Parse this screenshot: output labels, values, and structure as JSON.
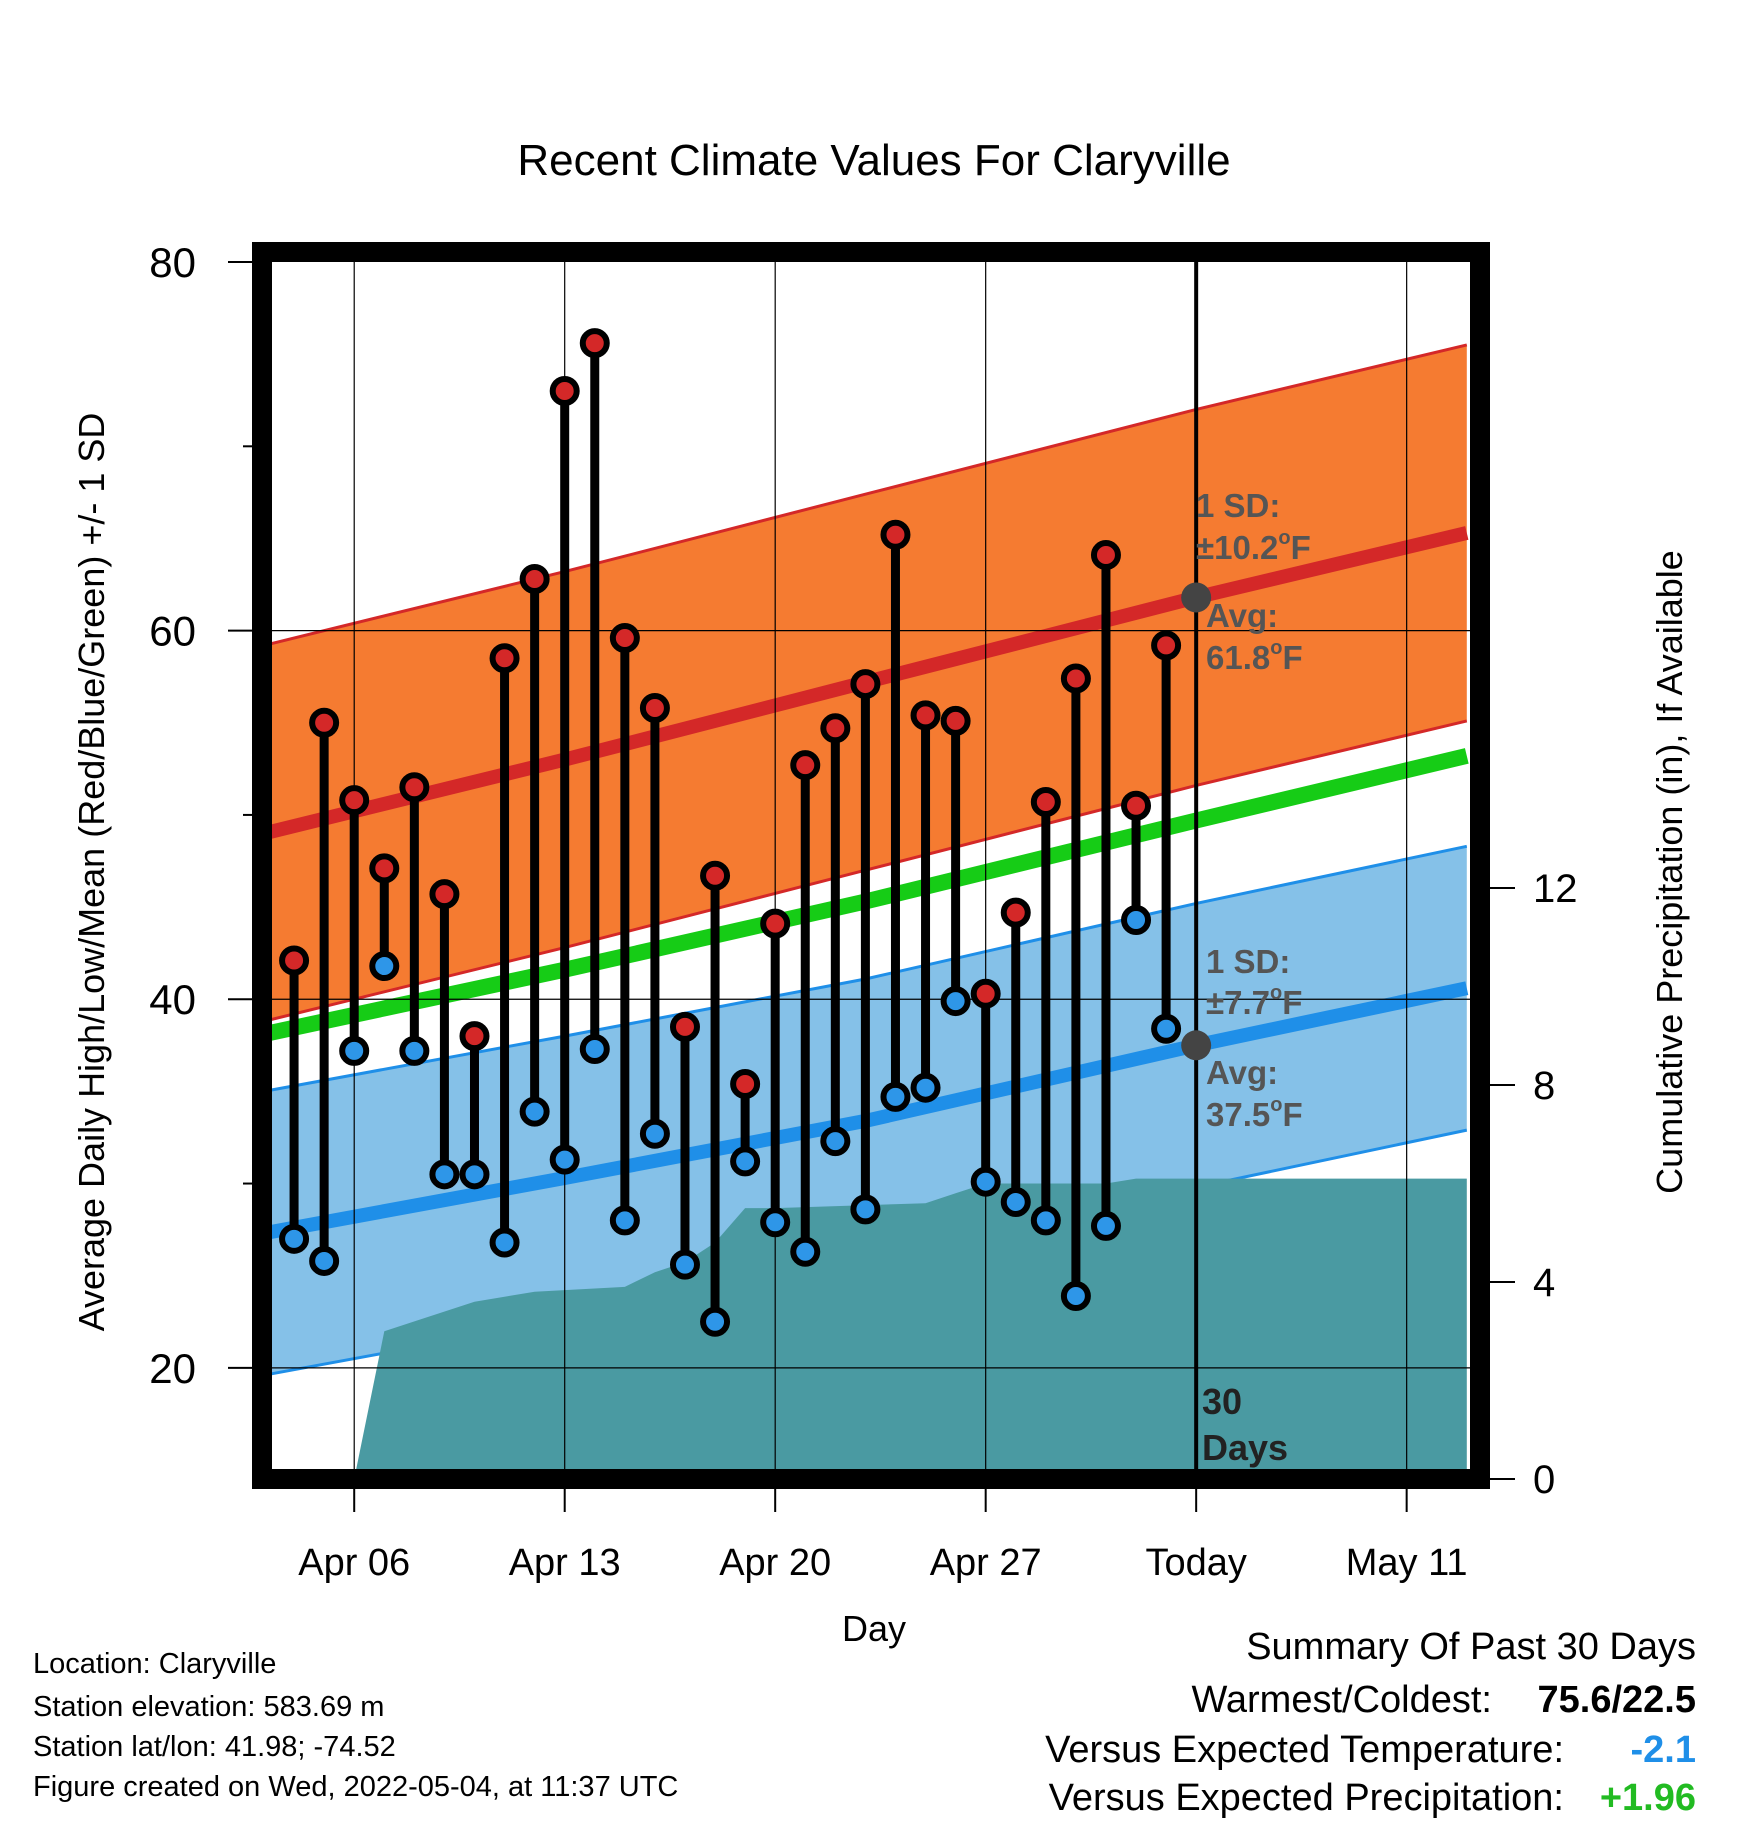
{
  "colors": {
    "high_band": "#f57b31",
    "high_line": "#d42828",
    "low_band": "#85c1e8",
    "low_line": "#1f8fe8",
    "mean_line": "#16cc16",
    "precip_fill": "#4a9aa2",
    "high_dot": "#d42828",
    "low_dot": "#2e96e8",
    "today_dot": "#444444",
    "temp_anomaly": "#1f8fe8",
    "precip_anomaly": "#22bb22"
  },
  "chart_data": {
    "type": "line",
    "title": "Recent Climate Values For Claryville",
    "xlabel": "Day",
    "ylabel": "Average Daily High/Low/Mean (Red/Blue/Green) +/- 1 SD",
    "y2label": "Cumulative Precipitation (in), If Available",
    "x_ticks": [
      "Apr 06",
      "Apr 13",
      "Apr 20",
      "Apr 27",
      "Today",
      "May 11"
    ],
    "y_ticks": [
      "20",
      "40",
      "60",
      "80"
    ],
    "y2_ticks": [
      "0",
      "4",
      "8",
      "12"
    ],
    "x_domain": [
      "2022-04-03",
      "2022-05-13"
    ],
    "ylim": [
      15,
      80
    ],
    "y2lim": [
      0,
      20
    ],
    "today": "2022-05-04",
    "grid": true,
    "normal_high": {
      "dates": [
        "2022-04-03",
        "2022-04-13",
        "2022-04-23",
        "2022-05-04",
        "2022-05-13"
      ],
      "avg": [
        49.0,
        53.0,
        57.2,
        61.8,
        65.3
      ],
      "sd": 10.2
    },
    "normal_low": {
      "dates": [
        "2022-04-03",
        "2022-04-13",
        "2022-04-23",
        "2022-05-04",
        "2022-05-13"
      ],
      "avg": [
        27.3,
        30.3,
        33.4,
        37.5,
        40.6
      ],
      "sd": 7.7
    },
    "normal_mean": {
      "dates": [
        "2022-04-03",
        "2022-04-13",
        "2022-04-23",
        "2022-05-04",
        "2022-05-13"
      ],
      "values": [
        38.1,
        41.6,
        45.3,
        49.7,
        53.2
      ]
    },
    "observed": {
      "dates": [
        "2022-04-04",
        "2022-04-05",
        "2022-04-06",
        "2022-04-07",
        "2022-04-08",
        "2022-04-09",
        "2022-04-10",
        "2022-04-11",
        "2022-04-12",
        "2022-04-13",
        "2022-04-14",
        "2022-04-15",
        "2022-04-16",
        "2022-04-17",
        "2022-04-18",
        "2022-04-19",
        "2022-04-20",
        "2022-04-21",
        "2022-04-22",
        "2022-04-23",
        "2022-04-24",
        "2022-04-25",
        "2022-04-26",
        "2022-04-27",
        "2022-04-28",
        "2022-04-29",
        "2022-04-30",
        "2022-05-01",
        "2022-05-02",
        "2022-05-03"
      ],
      "high": [
        42.1,
        55.0,
        50.8,
        47.1,
        51.5,
        45.7,
        38.0,
        58.5,
        62.8,
        73.0,
        75.6,
        59.6,
        55.8,
        38.5,
        46.7,
        35.4,
        44.1,
        52.7,
        54.7,
        57.1,
        65.2,
        55.4,
        55.1,
        40.3,
        44.7,
        50.7,
        57.4,
        64.1,
        50.5,
        59.2
      ],
      "low": [
        27.0,
        25.8,
        37.2,
        41.8,
        37.2,
        30.5,
        30.5,
        26.8,
        33.9,
        31.3,
        37.3,
        28.0,
        32.7,
        25.6,
        22.5,
        31.2,
        27.9,
        26.3,
        32.3,
        28.6,
        34.7,
        35.2,
        39.9,
        30.1,
        29.0,
        28.0,
        23.9,
        27.7,
        44.3,
        38.4
      ]
    },
    "precip": {
      "dates": [
        "2022-04-05",
        "2022-04-06",
        "2022-04-07",
        "2022-04-08",
        "2022-04-10",
        "2022-04-12",
        "2022-04-15",
        "2022-04-16",
        "2022-04-17",
        "2022-04-18",
        "2022-04-19",
        "2022-04-20",
        "2022-04-25",
        "2022-04-26",
        "2022-04-27",
        "2022-04-30",
        "2022-05-01",
        "2022-05-02",
        "2022-05-13"
      ],
      "cumulative": [
        0.0,
        0.0,
        3.0,
        3.2,
        3.6,
        3.8,
        3.9,
        4.2,
        4.4,
        4.8,
        5.5,
        5.5,
        5.6,
        5.8,
        6.0,
        6.0,
        6.0,
        6.1,
        6.1
      ]
    }
  },
  "annotations": {
    "high_sd_label": "1 SD:",
    "high_sd_value": "±10.2",
    "high_sd_unit": "F",
    "high_avg_label": "Avg:",
    "high_avg_value": "61.8",
    "high_avg_unit": "F",
    "low_sd_label": "1 SD:",
    "low_sd_value": "±7.7",
    "low_sd_unit": "F",
    "low_avg_label": "Avg:",
    "low_avg_value": "37.5",
    "low_avg_unit": "F",
    "degree_mark": "o",
    "days_number": "30",
    "days_word": "Days"
  },
  "footer": {
    "location": "Location: Claryville",
    "elevation": "Station elevation: 583.69 m",
    "latlon": "Station lat/lon: 41.98; -74.52",
    "created": "Figure created on Wed, 2022-05-04, at 11:37 UTC"
  },
  "summary": {
    "heading": "Summary Of Past 30 Days",
    "warm_cold_label": "Warmest/Coldest:",
    "warm_cold_value": "75.6/22.5",
    "temp_label": "Versus Expected Temperature:",
    "temp_value": "-2.1",
    "precip_label": "Versus Expected Precipitation:",
    "precip_value": "+1.96"
  }
}
